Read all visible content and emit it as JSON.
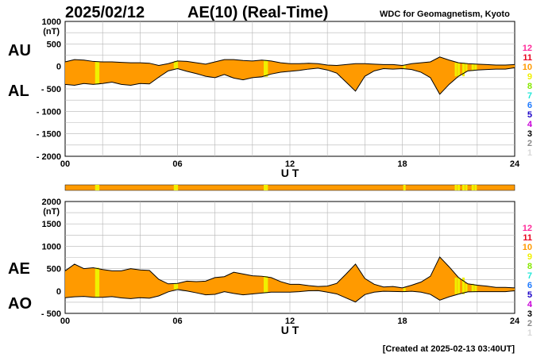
{
  "header": {
    "date": "2025/02/12",
    "title": "AE(10) (Real-Time)",
    "source": "WDC for Geomagnetism, Kyoto"
  },
  "footer": {
    "created": "[Created at 2025-02-13 03:40UT]"
  },
  "station_count_legend": {
    "items": [
      "12",
      "11",
      "10",
      "9",
      "8",
      "7",
      "6",
      "5",
      "4",
      "3",
      "2",
      "1"
    ],
    "colors": [
      "#ff2a9a",
      "#e8001c",
      "#ff9a00",
      "#f0f000",
      "#86e800",
      "#22e8d8",
      "#1e7aff",
      "#1a00c8",
      "#c800d8",
      "#000000",
      "#8a8a8a",
      "#d8d8d8"
    ]
  },
  "station_bar": {
    "base_color": "#ff9a00",
    "highlight_color": "#f0f000",
    "highlight_hours": [
      1.6,
      1.7,
      5.8,
      5.9,
      10.6,
      10.7,
      18.05,
      20.8,
      20.95,
      21.2,
      21.35,
      21.7,
      21.85
    ]
  },
  "chart_data": [
    {
      "type": "area",
      "title": "AU / AL",
      "label_upper": "AU",
      "label_lower": "AL",
      "ylabel": "(nT)",
      "xlabel": "U T",
      "xlim": [
        0,
        24
      ],
      "ylim": [
        -2000,
        1000
      ],
      "xticks": [
        "00",
        "06",
        "12",
        "18",
        "24"
      ],
      "yticks": [
        "1000",
        "500",
        "0",
        "- 500",
        "- 1000",
        "- 1500",
        "- 2000"
      ],
      "ytick_values": [
        1000,
        500,
        0,
        -500,
        -1000,
        -1500,
        -2000
      ],
      "fill_color": "#ff9a00",
      "x": [
        0,
        0.5,
        1,
        1.5,
        2,
        2.5,
        3,
        3.5,
        4,
        4.5,
        5,
        5.5,
        6,
        6.5,
        7,
        7.5,
        8,
        8.5,
        9,
        9.5,
        10,
        10.5,
        11,
        11.5,
        12,
        12.5,
        13,
        13.5,
        14,
        14.5,
        15,
        15.5,
        16,
        16.5,
        17,
        17.5,
        18,
        18.5,
        19,
        19.5,
        20,
        20.5,
        21,
        21.5,
        22,
        22.5,
        23,
        23.5,
        24
      ],
      "series": [
        {
          "name": "AU",
          "values": [
            100,
            150,
            140,
            110,
            100,
            100,
            90,
            80,
            80,
            70,
            20,
            60,
            120,
            110,
            80,
            50,
            100,
            150,
            150,
            130,
            120,
            140,
            120,
            80,
            60,
            60,
            70,
            60,
            30,
            20,
            40,
            60,
            60,
            50,
            40,
            40,
            20,
            60,
            80,
            100,
            210,
            140,
            80,
            60,
            50,
            40,
            30,
            30,
            40
          ]
        },
        {
          "name": "AL",
          "values": [
            -400,
            -420,
            -380,
            -400,
            -380,
            -350,
            -400,
            -420,
            -380,
            -390,
            -240,
            -100,
            -50,
            -110,
            -160,
            -220,
            -250,
            -180,
            -260,
            -300,
            -250,
            -230,
            -170,
            -130,
            -110,
            -90,
            -60,
            -40,
            -80,
            -150,
            -350,
            -550,
            -220,
            -100,
            -50,
            -60,
            -50,
            -70,
            -130,
            -250,
            -620,
            -400,
            -220,
            -100,
            -80,
            -70,
            -60,
            -60,
            -30
          ]
        }
      ]
    },
    {
      "type": "area",
      "title": "AE / AO",
      "label_upper": "AE",
      "label_lower": "AO",
      "ylabel": "(nT)",
      "xlabel": "U T",
      "xlim": [
        0,
        24
      ],
      "ylim": [
        -500,
        2000
      ],
      "xticks": [
        "00",
        "06",
        "12",
        "18",
        "24"
      ],
      "yticks": [
        "2000",
        "1500",
        "1000",
        "500",
        "0",
        "- 500"
      ],
      "ytick_values": [
        2000,
        1500,
        1000,
        500,
        0,
        -500
      ],
      "fill_color": "#ff9a00",
      "x": [
        0,
        0.5,
        1,
        1.5,
        2,
        2.5,
        3,
        3.5,
        4,
        4.5,
        5,
        5.5,
        6,
        6.5,
        7,
        7.5,
        8,
        8.5,
        9,
        9.5,
        10,
        10.5,
        11,
        11.5,
        12,
        12.5,
        13,
        13.5,
        14,
        14.5,
        15,
        15.5,
        16,
        16.5,
        17,
        17.5,
        18,
        18.5,
        19,
        19.5,
        20,
        20.5,
        21,
        21.5,
        22,
        22.5,
        23,
        23.5,
        24
      ],
      "series": [
        {
          "name": "AE",
          "values": [
            450,
            600,
            500,
            520,
            480,
            450,
            450,
            500,
            470,
            460,
            260,
            160,
            170,
            220,
            210,
            220,
            300,
            320,
            420,
            380,
            340,
            330,
            300,
            210,
            150,
            150,
            120,
            100,
            110,
            170,
            380,
            600,
            280,
            150,
            90,
            100,
            70,
            130,
            200,
            330,
            760,
            540,
            300,
            160,
            130,
            110,
            80,
            80,
            70
          ]
        },
        {
          "name": "AO",
          "values": [
            -150,
            -130,
            -120,
            -140,
            -140,
            -125,
            -155,
            -170,
            -150,
            -160,
            -110,
            -20,
            35,
            0,
            -40,
            -85,
            -75,
            -15,
            -55,
            -85,
            -65,
            -45,
            -25,
            -25,
            -25,
            -15,
            5,
            10,
            -25,
            -65,
            -155,
            -245,
            -80,
            -25,
            -5,
            -10,
            -15,
            -5,
            -25,
            -75,
            -205,
            -130,
            -70,
            -20,
            -15,
            -15,
            -15,
            -15,
            5
          ]
        }
      ]
    }
  ]
}
